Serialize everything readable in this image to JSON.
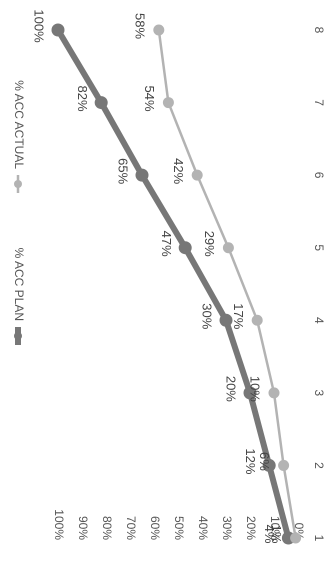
{
  "chart_data": {
    "type": "line",
    "orientation": "rotated-90-clockwise",
    "x": [
      1,
      2,
      3,
      4,
      5,
      6,
      7,
      8
    ],
    "ylim": [
      0,
      100
    ],
    "y_ticks": [
      "0%",
      "10%",
      "20%",
      "30%",
      "40%",
      "50%",
      "60%",
      "70%",
      "80%",
      "90%",
      "100%"
    ],
    "legend_position": "top",
    "grid": false,
    "series": [
      {
        "name": "% ACC PLAN",
        "color": "#777777",
        "values": [
          4,
          12,
          20,
          30,
          47,
          65,
          82,
          100
        ],
        "labels": [
          "4%",
          "12%",
          "20%",
          "30%",
          "47%",
          "65%",
          "82%",
          "100%"
        ]
      },
      {
        "name": "% ACC ACTUAL",
        "color": "#b3b3b3",
        "values": [
          1,
          6,
          10,
          17,
          29,
          42,
          54,
          58
        ],
        "labels": [
          "1%",
          "6%",
          "10%",
          "17%",
          "29%",
          "42%",
          "54%",
          "58%"
        ]
      }
    ]
  }
}
